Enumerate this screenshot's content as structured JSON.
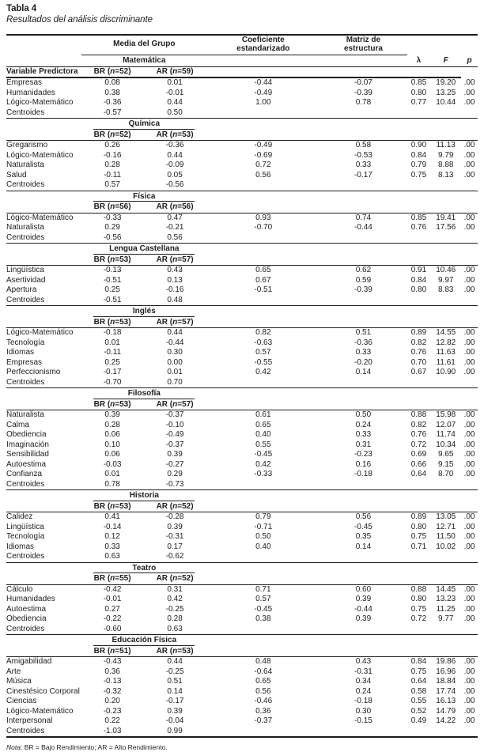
{
  "colors": {
    "text": "#1d1d1b",
    "border": "#000000",
    "background": "#ffffff"
  },
  "title": "Tabla 4",
  "subtitle": "Resultados del análisis discriminante",
  "note": {
    "prefix": "Nota",
    "rest": ": BR = Bajo Rendimiento; AR = Alto Rendimiento."
  },
  "table": {
    "column_headers": {
      "group_mean": "Media del Grupo",
      "std_coefficient": [
        "Coeficiente",
        "estandarizado"
      ],
      "structure_matrix": [
        "Matriz de",
        "estructura"
      ],
      "lambda": "λ",
      "f": "F",
      "p": "p",
      "predictor": "Variable Predictora"
    },
    "sections": [
      {
        "subject": "Matemática",
        "br_label": "BR (n=52)",
        "ar_label": "AR (n=59)",
        "rows": [
          [
            "Empresas",
            "0.08",
            "0.01",
            "-0.44",
            "-0.07",
            "0.85",
            "19.20",
            ".00"
          ],
          [
            "Humanidades",
            "0.38",
            "-0.01",
            "-0.49",
            "-0.39",
            "0.80",
            "13.25",
            ".00"
          ],
          [
            "Lógico-Matemático",
            "-0.36",
            "0.44",
            "1.00",
            "0.78",
            "0.77",
            "10.44",
            ".00"
          ]
        ],
        "centroids": [
          "Centroides",
          "-0.57",
          "0.50"
        ]
      },
      {
        "subject": "Química",
        "br_label": "BR (n=52)",
        "ar_label": "AR (n=53)",
        "rows": [
          [
            "Gregarismo",
            "0.26",
            "-0.36",
            "-0.49",
            "0.58",
            "0.90",
            "11.13",
            ".00"
          ],
          [
            "Lógico-Matemático",
            "-0.16",
            "0.44",
            "-0.69",
            "-0.53",
            "0.84",
            "9.79",
            ".00"
          ],
          [
            "Naturalista",
            "0.28",
            "-0.09",
            "0.72",
            "0.33",
            "0.79",
            "8.88",
            ".00"
          ],
          [
            "Salud",
            "-0.11",
            "0.05",
            "0.56",
            "-0.17",
            "0.75",
            "8.13",
            ".00"
          ]
        ],
        "centroids": [
          "Centroides",
          "0.57",
          "-0.56"
        ]
      },
      {
        "subject": "Física",
        "br_label": "BR (n=56)",
        "ar_label": "AR (n=56)",
        "rows": [
          [
            "Lógico-Matemático",
            "-0.33",
            "0.47",
            "0.93",
            "0.74",
            "0.85",
            "19.41",
            ".00"
          ],
          [
            "Naturalista",
            "0.29",
            "-0.21",
            "-0.70",
            "-0.44",
            "0.76",
            "17.56",
            ".00"
          ]
        ],
        "centroids": [
          "Centroides",
          "-0.56",
          "0.56"
        ]
      },
      {
        "subject": "Lengua Castellana",
        "br_label": "BR (n=53)",
        "ar_label": "AR (n=57)",
        "rows": [
          [
            "Lingüística",
            "-0.13",
            "0.43",
            "0.65",
            "0.62",
            "0.91",
            "10.46",
            ".00"
          ],
          [
            "Asertividad",
            "-0.51",
            "0.13",
            "0.67",
            "0.59",
            "0.84",
            "9.97",
            ".00"
          ],
          [
            "Apertura",
            "0.25",
            "-0.16",
            "-0.51",
            "-0.39",
            "0.80",
            "8.83",
            ".00"
          ]
        ],
        "centroids": [
          "Centroides",
          "-0.51",
          "0.48"
        ]
      },
      {
        "subject": "Inglés",
        "br_label": "BR (n=53)",
        "ar_label": "AR (n=57)",
        "rows": [
          [
            "Lógico-Matemático",
            "-0.18",
            "0.44",
            "0.82",
            "0.51",
            "0.89",
            "14.55",
            ".00"
          ],
          [
            "Tecnología",
            "0.01",
            "-0.44",
            "-0.63",
            "-0.36",
            "0.82",
            "12.82",
            ".00"
          ],
          [
            "Idiomas",
            "-0.11",
            "0.30",
            "0.57",
            "0.33",
            "0.76",
            "11.63",
            ".00"
          ],
          [
            "Empresas",
            "0.25",
            "0.00",
            "-0.55",
            "-0.20",
            "0.70",
            "11.61",
            ".00"
          ],
          [
            "Perfeccionismo",
            "-0.17",
            "0.01",
            "0.42",
            "0.14",
            "0.67",
            "10.90",
            ".00"
          ]
        ],
        "centroids": [
          "Centroides",
          "-0.70",
          "0.70"
        ]
      },
      {
        "subject": "Filosofía",
        "br_label": "BR (n=53)",
        "ar_label": "AR (n=57)",
        "rows": [
          [
            "Naturalista",
            "0.39",
            "-0.37",
            "0.61",
            "0.50",
            "0.88",
            "15.98",
            ".00"
          ],
          [
            "Calma",
            "0.28",
            "-0.10",
            "0.65",
            "0.24",
            "0.82",
            "12.07",
            ".00"
          ],
          [
            "Obediencia",
            "0.06",
            "-0.49",
            "0.40",
            "0.33",
            "0.76",
            "11.74",
            ".00"
          ],
          [
            "Imaginación",
            "0.10",
            "-0.37",
            "0.55",
            "0.31",
            "0.72",
            "10.34",
            ".00"
          ],
          [
            "Sensibilidad",
            "0.06",
            "0.39",
            "-0.45",
            "-0.23",
            "0.69",
            "9.65",
            ".00"
          ],
          [
            "Autoestima",
            "-0.03",
            "-0.27",
            "0.42",
            "0.16",
            "0.66",
            "9.15",
            ".00"
          ],
          [
            "Confianza",
            "0.01",
            "0.29",
            "-0.33",
            "-0.18",
            "0.64",
            "8.70",
            ".00"
          ]
        ],
        "centroids": [
          "Centroides",
          "0.78",
          "-0.73"
        ]
      },
      {
        "subject": "Historia",
        "br_label": "BR (n=53)",
        "ar_label": "AR (n=52)",
        "rows": [
          [
            "Calidez",
            "0.41",
            "-0.28",
            "0.79",
            "0.56",
            "0.89",
            "13.05",
            ".00"
          ],
          [
            "Lingüística",
            "-0.14",
            "0.39",
            "-0.71",
            "-0.45",
            "0.80",
            "12.71",
            ".00"
          ],
          [
            "Tecnología",
            "0.12",
            "-0.31",
            "0.50",
            "0.35",
            "0.75",
            "11.50",
            ".00"
          ],
          [
            "Idiomas",
            "0.33",
            "0.17",
            "0.40",
            "0.14",
            "0.71",
            "10.02",
            ".00"
          ]
        ],
        "centroids": [
          "Centroides",
          "0.63",
          "-0.62"
        ]
      },
      {
        "subject": "Teatro",
        "br_label": "BR (n=55)",
        "ar_label": "AR (n=52)",
        "rows": [
          [
            "Cálculo",
            "-0.42",
            "0.31",
            "0.71",
            "0.60",
            "0.88",
            "14.45",
            ".00"
          ],
          [
            "Humanidades",
            "-0.01",
            "0.42",
            "0.57",
            "0.39",
            "0.80",
            "13.23",
            ".00"
          ],
          [
            "Autoestima",
            "0.27",
            "-0.25",
            "-0.45",
            "-0.44",
            "0.75",
            "11.25",
            ".00"
          ],
          [
            "Obediencia",
            "-0.22",
            "0.28",
            "0.38",
            "0.39",
            "0.72",
            "9.77",
            ".00"
          ]
        ],
        "centroids": [
          "Centroides",
          "-0.60",
          "0.63"
        ]
      },
      {
        "subject": "Educación Física",
        "br_label": "BR (n=51)",
        "ar_label": "AR (n=53)",
        "rows": [
          [
            "Amigabilidad",
            "-0.43",
            "0.44",
            "0.48",
            "0.43",
            "0.84",
            "19.86",
            ".00"
          ],
          [
            "Arte",
            "0.36",
            "-0.25",
            "-0.64",
            "-0.31",
            "0.75",
            "16.96",
            ".00"
          ],
          [
            "Música",
            "-0.13",
            "0.51",
            "0.65",
            "0.34",
            "0.64",
            "18.84",
            ".00"
          ],
          [
            "Cinestésico Corporal",
            "-0.32",
            "0.14",
            "0.56",
            "0.24",
            "0.58",
            "17.74",
            ".00"
          ],
          [
            "Ciencias",
            "0.20",
            "-0.17",
            "-0.46",
            "-0.18",
            "0.55",
            "16.13",
            ".00"
          ],
          [
            "Lógico-Matemático",
            "-0.23",
            "0.39",
            "0.36",
            "0.30",
            "0.52",
            "14.79",
            ".00"
          ],
          [
            "Interpersonal",
            "0.22",
            "-0.04",
            "-0.37",
            "-0.15",
            "0.49",
            "14.22",
            ".00"
          ]
        ],
        "centroids": [
          "Centroides",
          "-1.03",
          "0.99"
        ]
      }
    ]
  }
}
